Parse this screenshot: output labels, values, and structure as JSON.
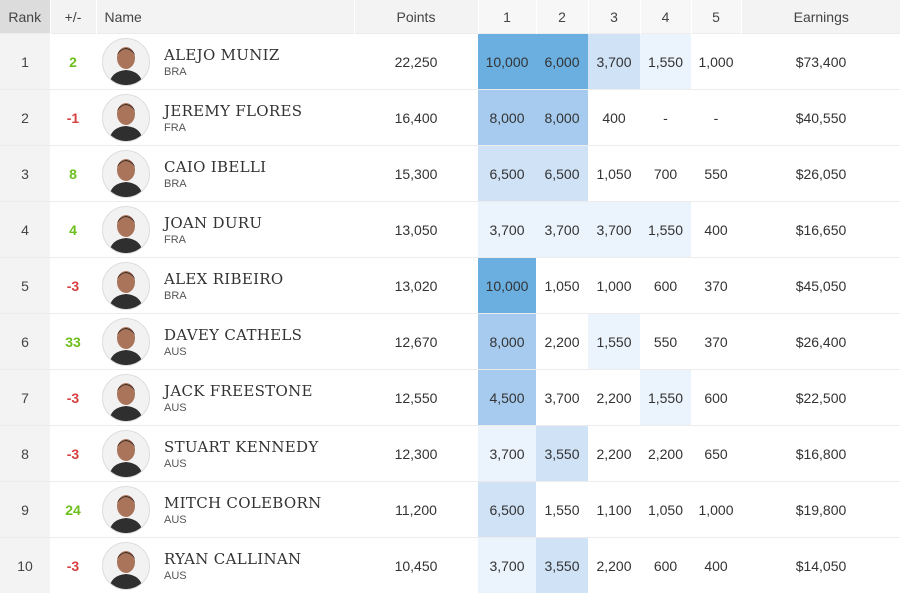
{
  "headers": {
    "rank": "Rank",
    "change": "+/-",
    "name": "Name",
    "points": "Points",
    "events": [
      "1",
      "2",
      "3",
      "4",
      "5"
    ],
    "earnings": "Earnings"
  },
  "colors": {
    "heat_max": "#6aafe0",
    "heat_high": "#a6cbee",
    "heat_mid": "#cfe2f6",
    "heat_low": "#ebf3fc",
    "heat_none": "#ffffff",
    "up": "#6cbf1c",
    "down": "#d64040"
  },
  "rows": [
    {
      "rank": "1",
      "change": "2",
      "dir": "up",
      "name": "ALEJO MUNIZ",
      "country": "BRA",
      "points": "22,250",
      "events": [
        "10,000",
        "6,000",
        "3,700",
        "1,550",
        "1,000"
      ],
      "shade": [
        4,
        4,
        2,
        1,
        0
      ],
      "earnings": "$73,400",
      "avatar": "surfer-avatar"
    },
    {
      "rank": "2",
      "change": "-1",
      "dir": "down",
      "name": "JEREMY FLORES",
      "country": "FRA",
      "points": "16,400",
      "events": [
        "8,000",
        "8,000",
        "400",
        "-",
        "-"
      ],
      "shade": [
        3,
        3,
        0,
        0,
        0
      ],
      "earnings": "$40,550",
      "avatar": "surfer-avatar"
    },
    {
      "rank": "3",
      "change": "8",
      "dir": "up",
      "name": "CAIO IBELLI",
      "country": "BRA",
      "points": "15,300",
      "events": [
        "6,500",
        "6,500",
        "1,050",
        "700",
        "550"
      ],
      "shade": [
        2,
        2,
        0,
        0,
        0
      ],
      "earnings": "$26,050",
      "avatar": "surfer-avatar"
    },
    {
      "rank": "4",
      "change": "4",
      "dir": "up",
      "name": "JOAN DURU",
      "country": "FRA",
      "points": "13,050",
      "events": [
        "3,700",
        "3,700",
        "3,700",
        "1,550",
        "400"
      ],
      "shade": [
        1,
        1,
        1,
        1,
        0
      ],
      "earnings": "$16,650",
      "avatar": "surfer-avatar"
    },
    {
      "rank": "5",
      "change": "-3",
      "dir": "down",
      "name": "ALEX RIBEIRO",
      "country": "BRA",
      "points": "13,020",
      "events": [
        "10,000",
        "1,050",
        "1,000",
        "600",
        "370"
      ],
      "shade": [
        4,
        0,
        0,
        0,
        0
      ],
      "earnings": "$45,050",
      "avatar": "surfer-avatar"
    },
    {
      "rank": "6",
      "change": "33",
      "dir": "up",
      "name": "DAVEY CATHELS",
      "country": "AUS",
      "points": "12,670",
      "events": [
        "8,000",
        "2,200",
        "1,550",
        "550",
        "370"
      ],
      "shade": [
        3,
        0,
        1,
        0,
        0
      ],
      "earnings": "$26,400",
      "avatar": "surfer-avatar"
    },
    {
      "rank": "7",
      "change": "-3",
      "dir": "down",
      "name": "JACK FREESTONE",
      "country": "AUS",
      "points": "12,550",
      "events": [
        "4,500",
        "3,700",
        "2,200",
        "1,550",
        "600"
      ],
      "shade": [
        3,
        0,
        0,
        1,
        0
      ],
      "earnings": "$22,500",
      "avatar": "surfer-avatar"
    },
    {
      "rank": "8",
      "change": "-3",
      "dir": "down",
      "name": "STUART KENNEDY",
      "country": "AUS",
      "points": "12,300",
      "events": [
        "3,700",
        "3,550",
        "2,200",
        "2,200",
        "650"
      ],
      "shade": [
        1,
        2,
        0,
        0,
        0
      ],
      "earnings": "$16,800",
      "avatar": "surfer-avatar"
    },
    {
      "rank": "9",
      "change": "24",
      "dir": "up",
      "name": "MITCH COLEBORN",
      "country": "AUS",
      "points": "11,200",
      "events": [
        "6,500",
        "1,550",
        "1,100",
        "1,050",
        "1,000"
      ],
      "shade": [
        2,
        0,
        0,
        0,
        0
      ],
      "earnings": "$19,800",
      "avatar": "surfer-avatar"
    },
    {
      "rank": "10",
      "change": "-3",
      "dir": "down",
      "name": "RYAN CALLINAN",
      "country": "AUS",
      "points": "10,450",
      "events": [
        "3,700",
        "3,550",
        "2,200",
        "600",
        "400"
      ],
      "shade": [
        1,
        2,
        0,
        0,
        0
      ],
      "earnings": "$14,050",
      "avatar": "surfer-avatar"
    }
  ]
}
